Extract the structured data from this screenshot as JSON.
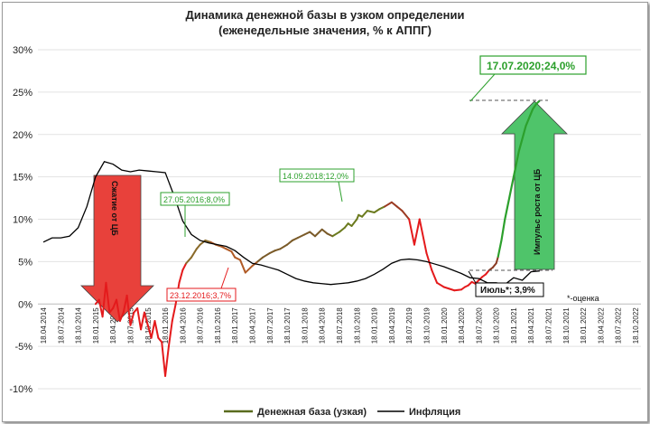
{
  "chart_data": {
    "type": "line",
    "title": "Динамика денежной базы в узком определении",
    "subtitle": "(еженедельные значения, % к АППГ)",
    "ylim": [
      -10,
      30
    ],
    "yticks": [
      "-10%",
      "-5%",
      "0%",
      "5%",
      "10%",
      "15%",
      "20%",
      "25%",
      "30%"
    ],
    "xticks": [
      "18.04.2014",
      "18.07.2014",
      "18.10.2014",
      "18.01.2015",
      "18.04.2015",
      "18.07.2015",
      "18.10.2015",
      "18.01.2016",
      "18.04.2016",
      "18.07.2016",
      "18.10.2016",
      "18.01.2017",
      "18.04.2017",
      "18.07.2017",
      "18.10.2017",
      "18.01.2018",
      "18.04.2018",
      "18.07.2018",
      "18.10.2018",
      "18.01.2019",
      "18.04.2019",
      "18.07.2019",
      "18.10.2019",
      "18.01.2020",
      "18.04.2020",
      "18.07.2020",
      "18.10.2020",
      "18.01.2021",
      "18.04.2021",
      "18.07.2021",
      "18.10.2021",
      "18.01.2022",
      "18.04.2022",
      "18.07.2022",
      "18.10.2022"
    ],
    "grid": true,
    "legend_position": "bottom",
    "series": [
      {
        "name": "Денежная база (узкая)",
        "color": "#5a6b1e",
        "x": [
          3.0,
          3.2,
          3.4,
          3.6,
          3.8,
          4.0,
          4.2,
          4.4,
          4.6,
          4.8,
          5.0,
          5.2,
          5.4,
          5.6,
          5.8,
          6.0,
          6.2,
          6.4,
          6.6,
          6.8,
          7.0,
          7.2,
          7.4,
          7.6,
          7.8,
          8.0,
          8.2,
          8.5,
          8.8,
          9.0,
          9.3,
          9.6,
          9.9,
          10.2,
          10.5,
          10.8,
          11.0,
          11.3,
          11.6,
          12.0,
          12.3,
          12.6,
          13.0,
          13.3,
          13.6,
          14.0,
          14.3,
          14.6,
          15.0,
          15.3,
          15.6,
          16.0,
          16.3,
          16.6,
          17.0,
          17.3,
          17.5,
          17.7,
          18.0,
          18.1,
          18.3,
          18.6,
          19.0,
          19.3,
          19.6,
          20.0,
          20.3,
          20.6,
          21.0,
          21.3,
          21.6,
          22.0,
          22.3,
          22.6,
          23.0,
          23.3,
          23.6,
          24.0,
          24.2,
          24.4,
          24.6,
          24.8,
          25.0,
          25.2,
          25.4,
          25.6,
          25.8,
          26.0,
          26.1
        ],
        "y": [
          0,
          0.5,
          -1.5,
          2.5,
          -1,
          -0.5,
          0.5,
          -2,
          -1,
          1,
          -2.5,
          -1,
          -0.5,
          -3,
          -1,
          -2.5,
          -4,
          -2,
          -4,
          -4.5,
          -8.5,
          -5,
          -2,
          0,
          2.5,
          4,
          4.8,
          5.5,
          6.5,
          7.0,
          7.5,
          7.3,
          7.0,
          6.8,
          6.5,
          6.2,
          5.5,
          5.2,
          3.7,
          4.5,
          5,
          5.5,
          6,
          6.3,
          6.5,
          7,
          7.5,
          7.8,
          8.2,
          8.5,
          8.0,
          8.8,
          8.3,
          8.0,
          8.5,
          9.0,
          9.5,
          9.2,
          10,
          10.5,
          10.3,
          11,
          10.8,
          11.2,
          11.5,
          12.0,
          11.5,
          11.0,
          10,
          7,
          10,
          6,
          4,
          2.5,
          2,
          1.8,
          1.6,
          1.7,
          2.0,
          2.2,
          2.6,
          2.4,
          2.8,
          3.2,
          3.5,
          4.0,
          4.3,
          4.8,
          5.5
        ]
      },
      {
        "name": "Денежная база (узкая) 2020",
        "color": "#2ca02c",
        "x": [
          26.1,
          26.3,
          26.5,
          26.7,
          26.9,
          27.1,
          27.3,
          27.5,
          27.7,
          27.9,
          28.1,
          28.3,
          28.5
        ],
        "y": [
          5.5,
          7.5,
          10,
          12,
          14,
          16,
          18,
          19.5,
          21,
          22,
          23,
          23.6,
          24
        ]
      },
      {
        "name": "Инфляция",
        "color": "#000000",
        "x": [
          0,
          0.5,
          1,
          1.5,
          2,
          2.5,
          3,
          3.5,
          4,
          4.5,
          5,
          5.5,
          6,
          6.5,
          7,
          7.5,
          8,
          8.5,
          9,
          9.5,
          10,
          10.5,
          11,
          11.5,
          12,
          12.5,
          13,
          13.5,
          14,
          14.5,
          15,
          15.5,
          16,
          16.5,
          17,
          17.5,
          18,
          18.5,
          19,
          19.5,
          20,
          20.5,
          21,
          21.5,
          22,
          22.5,
          23,
          23.5,
          24,
          24.5,
          25,
          25.5,
          26,
          26.5,
          27,
          27.5,
          28,
          28.5
        ],
        "y": [
          7.3,
          7.8,
          7.8,
          8.0,
          9.0,
          11.5,
          15.0,
          16.8,
          16.5,
          15.8,
          15.6,
          15.8,
          15.7,
          15.6,
          15.5,
          12.8,
          9.8,
          8.2,
          7.5,
          7.2,
          7.0,
          6.8,
          6.3,
          5.5,
          4.8,
          4.6,
          4.3,
          4.0,
          3.5,
          3.0,
          2.7,
          2.5,
          2.4,
          2.3,
          2.4,
          2.5,
          2.7,
          3.0,
          3.5,
          4.1,
          4.8,
          5.2,
          5.3,
          5.2,
          5.0,
          4.7,
          4.4,
          4.0,
          3.6,
          3.1,
          3.0,
          2.5,
          2.5,
          2.3,
          3.1,
          2.8,
          3.8,
          3.9
        ]
      }
    ],
    "annotations": [
      {
        "label": "27.05.2016;8,0%",
        "color": "#2ca02c"
      },
      {
        "label": "23.12.2016;3,7%",
        "color": "#e41a1c"
      },
      {
        "label": "14.09.2018;12,0%",
        "color": "#2ca02c"
      },
      {
        "label": "17.07.2020;24,0%",
        "color": "#2ca02c"
      },
      {
        "label": "Июль*; 3,9%",
        "color": "#000000"
      }
    ],
    "arrow_down_label": "Сжатие от ЦБ",
    "arrow_up_label": "Импульс роста от ЦБ",
    "footnote": "*-оценка",
    "legend": [
      {
        "label": "Денежная база (узкая)",
        "color": "#5a6b1e"
      },
      {
        "label": "Инфляция",
        "color": "#000000"
      }
    ]
  }
}
